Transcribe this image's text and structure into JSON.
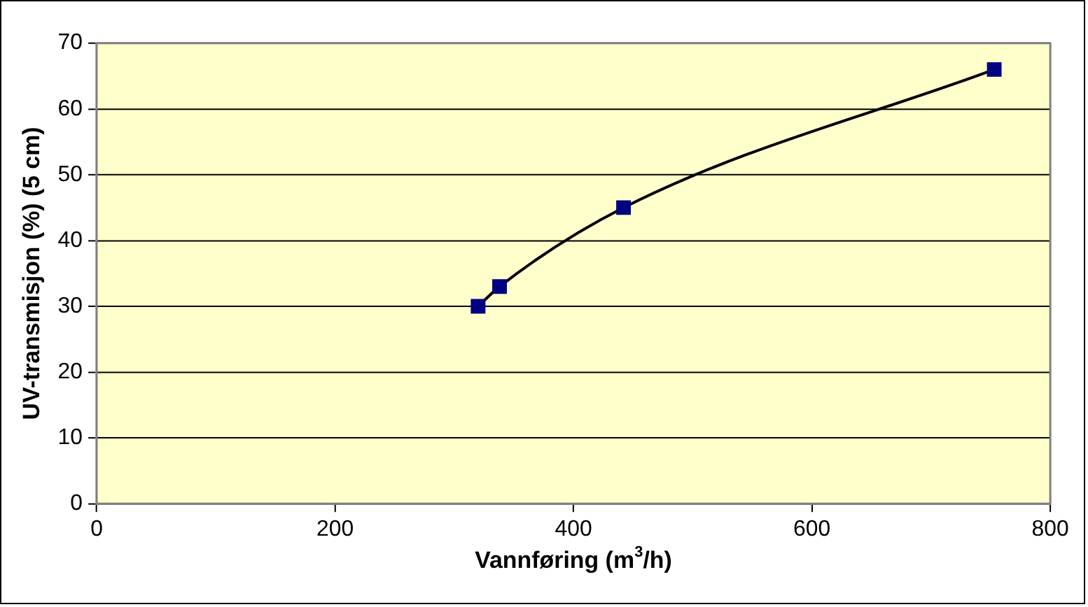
{
  "chart_data": {
    "type": "line",
    "xlabel": "Vannføring (m$^{3}$/h)",
    "ylabel": "UV-transmisjon (%) (5 cm)",
    "x": [
      320,
      338,
      442,
      753
    ],
    "series": [
      {
        "color": "#000080",
        "values": [
          30,
          33,
          45,
          66
        ]
      }
    ],
    "xlim": [
      0,
      800
    ],
    "xticks": [
      0,
      200,
      400,
      600,
      800
    ],
    "ylim": [
      0,
      70
    ],
    "yticks": [
      0,
      10,
      20,
      30,
      40,
      50,
      60,
      70
    ],
    "grid": "y",
    "legend": false,
    "marker": "square",
    "line_style": "solid"
  }
}
